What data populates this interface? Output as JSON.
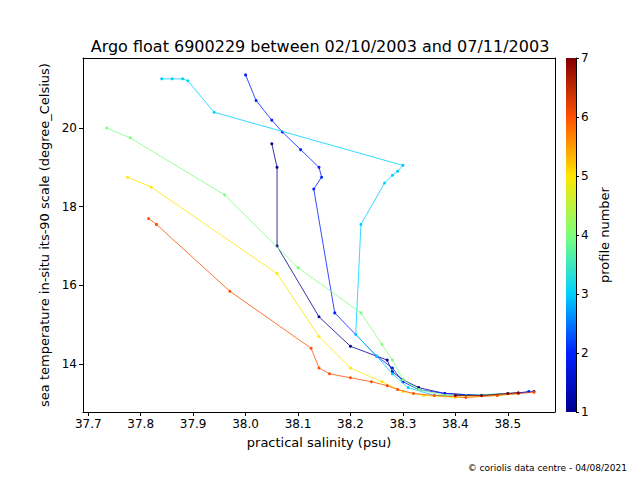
{
  "chart_data": {
    "type": "line",
    "title": "Argo float 6900229 between 02/10/2003 and 07/11/2003",
    "x_label": "practical salinity (psu)",
    "y_label": "sea temperature in-situ its-90 scale (degree_Celsius)",
    "annotations": [
      "© coriolis data centre - 04/08/2021"
    ],
    "xlim": [
      37.69,
      38.59
    ],
    "xticks": [
      37.7,
      37.8,
      37.9,
      {
        "value": 38,
        "label": "38.0"
      },
      38.1,
      38.2,
      38.3,
      38.4,
      38.5
    ],
    "ylim": [
      12.78,
      21.78
    ],
    "yticks": [
      14,
      16,
      18,
      20
    ],
    "grid": false,
    "marker": "circle",
    "line_style": "solid",
    "colorbar": {
      "label": "profile number",
      "range": [
        1,
        7
      ],
      "ticks": [
        1,
        2,
        3,
        4,
        5,
        6,
        7
      ]
    },
    "series": [
      {
        "profile": 1,
        "color": "#00008f",
        "x": [
          38.05,
          38.06,
          38.06,
          38.14,
          38.2,
          38.27,
          38.28,
          38.3,
          38.33,
          38.38,
          38.45,
          38.5,
          38.55
        ],
        "values": [
          19.6,
          19.0,
          17.0,
          15.2,
          14.45,
          14.1,
          13.8,
          13.6,
          13.4,
          13.25,
          13.2,
          13.25,
          13.3
        ]
      },
      {
        "profile": 2,
        "color": "#0020ff",
        "x": [
          38.0,
          38.02,
          38.05,
          38.07,
          38.105,
          38.14,
          38.145,
          38.13,
          38.17,
          38.25,
          38.28,
          38.3,
          38.33,
          38.38,
          38.45,
          38.52,
          38.54
        ],
        "values": [
          21.35,
          20.7,
          20.2,
          19.9,
          19.45,
          19.0,
          18.75,
          18.45,
          15.3,
          14.2,
          13.9,
          13.55,
          13.35,
          13.25,
          13.2,
          13.25,
          13.3
        ]
      },
      {
        "profile": 3,
        "color": "#00d0ff",
        "x": [
          37.84,
          37.86,
          37.88,
          37.89,
          37.94,
          38.3,
          38.29,
          38.28,
          38.265,
          38.22,
          38.21,
          38.25,
          38.28,
          38.31,
          38.36,
          38.42,
          38.5
        ],
        "values": [
          21.25,
          21.25,
          21.25,
          21.2,
          20.4,
          19.05,
          18.9,
          18.8,
          18.6,
          17.55,
          14.75,
          14.2,
          13.75,
          13.4,
          13.2,
          13.2,
          13.25
        ]
      },
      {
        "profile": 4,
        "color": "#7dff7a",
        "x": [
          37.735,
          37.78,
          37.96,
          38.1,
          38.22,
          38.26,
          38.28,
          38.3,
          38.33,
          38.38,
          38.45,
          38.52
        ],
        "values": [
          20.0,
          19.75,
          18.3,
          16.45,
          15.3,
          14.5,
          14.1,
          13.6,
          13.35,
          13.2,
          13.2,
          13.25
        ]
      },
      {
        "profile": 5,
        "color": "#ffe600",
        "x": [
          37.775,
          37.82,
          38.06,
          38.14,
          38.2,
          38.26,
          38.3,
          38.34,
          38.4,
          38.48,
          38.52
        ],
        "values": [
          18.75,
          18.5,
          16.3,
          14.7,
          13.9,
          13.55,
          13.3,
          13.2,
          13.15,
          13.2,
          13.25
        ]
      },
      {
        "profile": 6,
        "color": "#ff5000",
        "x": [
          37.815,
          37.83,
          37.97,
          38.125,
          38.14,
          38.16,
          38.2,
          38.24,
          38.27,
          38.29,
          38.32,
          38.36,
          38.42,
          38.48,
          38.52,
          38.55
        ],
        "values": [
          17.7,
          17.55,
          15.85,
          14.4,
          13.9,
          13.75,
          13.65,
          13.55,
          13.45,
          13.35,
          13.25,
          13.2,
          13.15,
          13.2,
          13.25,
          13.28
        ]
      },
      {
        "profile": 7,
        "color": "#800000",
        "x": [
          38.4,
          38.45,
          38.5,
          38.52
        ],
        "values": [
          13.2,
          13.2,
          13.25,
          13.27
        ]
      }
    ]
  }
}
